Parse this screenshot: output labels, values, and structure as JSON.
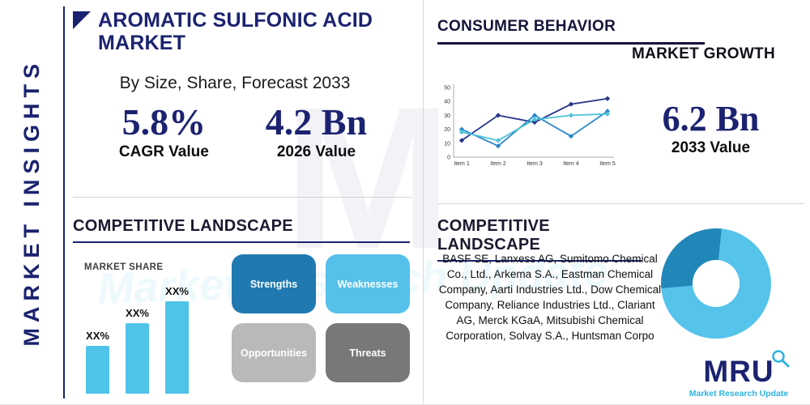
{
  "header": {
    "title": "AROMATIC SULFONIC ACID MARKET",
    "subtitle": "By Size, Share, Forecast 2033",
    "vertical_label": "MARKET INSIGHTS"
  },
  "stats": {
    "cagr_value": "5.8%",
    "cagr_label": "CAGR Value",
    "value_2026": "4.2 Bn",
    "label_2026": "2026 Value",
    "value_2033": "6.2 Bn",
    "label_2033": "2033 Value"
  },
  "sections": {
    "consumer_behavior": "CONSUMER BEHAVIOR",
    "market_growth": "MARKET GROWTH",
    "competitive_landscape_left": "COMPETITIVE LANDSCAPE",
    "competitive_landscape_right": "COMPETITIVE LANDSCAPE",
    "market_share_label": "MARKET SHARE"
  },
  "swot": {
    "strengths": {
      "label": "Strengths",
      "color": "#2079b0"
    },
    "weaknesses": {
      "label": "Weaknesses",
      "color": "#55c0ea"
    },
    "opportunities": {
      "label": "Opportunities",
      "color": "#b9b9b9"
    },
    "threats": {
      "label": "Threats",
      "color": "#787878"
    }
  },
  "companies_text": "BASF SE, Lanxess AG, Sumitomo Chemical Co., Ltd., Arkema S.A., Eastman Chemical Company, Aarti Industries Ltd., Dow Chemical Company, Reliance Industries Ltd., Clariant AG, Merck KGaA, Mitsubishi Chemical Corporation, Solvay S.A., Huntsman Corpo",
  "logo": {
    "name": "MRU",
    "tagline": "Market Research Update"
  },
  "watermark": {
    "letter": "M"
  },
  "colors": {
    "navy": "#1b2370",
    "light_blue": "#4fc3e8",
    "mid_blue": "#2079b0",
    "gray_divider": "#d6d6d6"
  },
  "chart_data": [
    {
      "id": "market-growth-line",
      "type": "line",
      "x": [
        "Item 1",
        "Item 2",
        "Item 3",
        "Item 4",
        "Item 5"
      ],
      "ylim": [
        0,
        50
      ],
      "yticks": [
        0,
        10,
        20,
        30,
        40,
        50
      ],
      "grid": false,
      "legend": "none",
      "series": [
        {
          "name": "series-navy",
          "color": "#27348b",
          "values": [
            12,
            30,
            25,
            38,
            42
          ]
        },
        {
          "name": "series-blue",
          "color": "#2c88c9",
          "values": [
            20,
            8,
            30,
            15,
            33
          ]
        },
        {
          "name": "series-teal",
          "color": "#4cc2d8",
          "values": [
            18,
            12,
            27,
            30,
            31
          ]
        }
      ]
    },
    {
      "id": "market-share-bars",
      "type": "bar",
      "title": "MARKET SHARE",
      "labels": [
        "XX%",
        "XX%",
        "XX%"
      ],
      "values": [
        31,
        46,
        60
      ],
      "color": "#4fc3e8"
    },
    {
      "id": "company-share-donut",
      "type": "pie",
      "donut": true,
      "start_angle_deg": 265,
      "slices": [
        {
          "name": "segment-dark",
          "value": 28,
          "color": "#2187b8"
        },
        {
          "name": "segment-light",
          "value": 72,
          "color": "#55c3ea"
        }
      ]
    }
  ]
}
